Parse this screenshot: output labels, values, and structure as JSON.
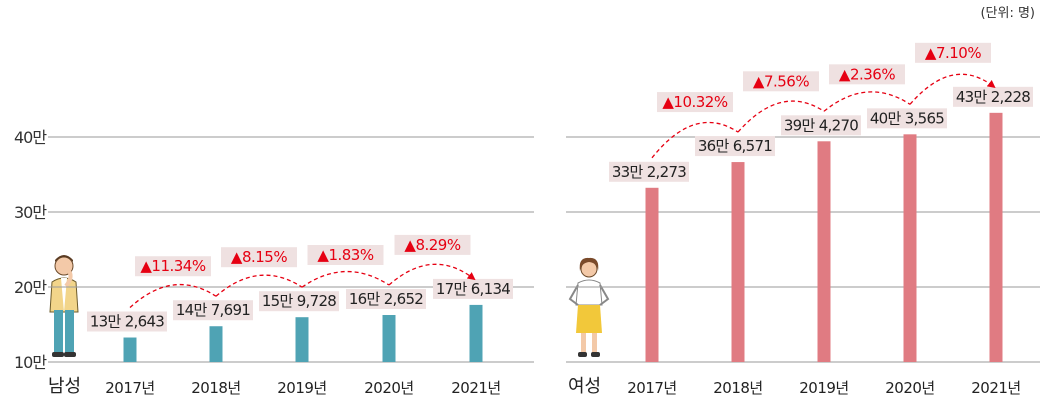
{
  "unit_note": "(단위: 명)",
  "y_axis": {
    "ticks": [
      "10만",
      "20만",
      "30만",
      "40만"
    ],
    "tick_values": [
      100000,
      200000,
      300000,
      400000
    ]
  },
  "colors": {
    "male_bar": "#4fa3b4",
    "female_bar": "#e07b82",
    "arrow": "#e60012",
    "label_bg": "#efe1e1",
    "grid": "#9a9a9a"
  },
  "chart_data": [
    {
      "type": "bar",
      "group_label": "남성",
      "categories": [
        "2017년",
        "2018년",
        "2019년",
        "2020년",
        "2021년"
      ],
      "values": [
        132643,
        147691,
        159728,
        162652,
        176134
      ],
      "value_labels": [
        "13만 2,643",
        "14만 7,691",
        "15만 9,728",
        "16만 2,652",
        "17만 6,134"
      ],
      "growth_labels": [
        "▲11.34%",
        "▲8.15%",
        "▲1.83%",
        "▲8.29%"
      ],
      "ylim": [
        100000,
        440000
      ],
      "grid": true
    },
    {
      "type": "bar",
      "group_label": "여성",
      "categories": [
        "2017년",
        "2018년",
        "2019년",
        "2020년",
        "2021년"
      ],
      "values": [
        332273,
        366571,
        394270,
        403565,
        432228
      ],
      "value_labels": [
        "33만 2,273",
        "36만 6,571",
        "39만 4,270",
        "40만 3,565",
        "43만 2,228"
      ],
      "growth_labels": [
        "▲10.32%",
        "▲7.56%",
        "▲2.36%",
        "▲7.10%"
      ],
      "ylim": [
        100000,
        440000
      ],
      "grid": true
    }
  ]
}
